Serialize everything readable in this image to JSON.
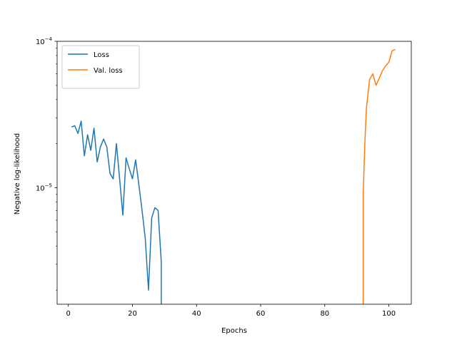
{
  "chart_data": {
    "type": "line",
    "title": "",
    "xlabel": "Epochs",
    "ylabel": "Negative log-likelihood",
    "xlim": [
      -3.5,
      107
    ],
    "ylim": [
      1.6e-06,
      0.0001
    ],
    "yscale": "log",
    "grid": false,
    "legend_position": "top-left",
    "x_ticks": [
      0,
      20,
      40,
      60,
      80,
      100
    ],
    "y_ticks": [
      {
        "value": 1e-05,
        "base": "10",
        "exp": "−5"
      },
      {
        "value": 0.0001,
        "base": "10",
        "exp": "−4"
      }
    ],
    "series": [
      {
        "name": "Loss",
        "color": "#1f77b4",
        "x": [
          1,
          2,
          3,
          4,
          5,
          6,
          7,
          8,
          9,
          10,
          11,
          12,
          13,
          14,
          15,
          16,
          17,
          18,
          19,
          20,
          21,
          22,
          23,
          24,
          25,
          26,
          27,
          28,
          29,
          29
        ],
        "y": [
          2.6e-05,
          2.65e-05,
          2.35e-05,
          2.85e-05,
          1.65e-05,
          2.3e-05,
          1.8e-05,
          2.55e-05,
          1.5e-05,
          1.9e-05,
          2.15e-05,
          1.9e-05,
          1.25e-05,
          1.15e-05,
          2e-05,
          1.15e-05,
          6.5e-06,
          1.6e-05,
          1.35e-05,
          1.15e-05,
          1.55e-05,
          1.05e-05,
          7e-06,
          4.5e-06,
          2e-06,
          6.2e-06,
          7.3e-06,
          7e-06,
          3.1e-06,
          1.6e-06
        ]
      },
      {
        "name": "Val. loss",
        "color": "#ff7f0e",
        "x": [
          92,
          92,
          92.5,
          93,
          94,
          95,
          96,
          97,
          98,
          99,
          100,
          101,
          102
        ],
        "y": [
          1.6e-06,
          9e-06,
          2e-05,
          3.5e-05,
          5.5e-05,
          6e-05,
          5e-05,
          5.6e-05,
          6.3e-05,
          6.8e-05,
          7.2e-05,
          8.6e-05,
          8.8e-05
        ]
      }
    ]
  }
}
